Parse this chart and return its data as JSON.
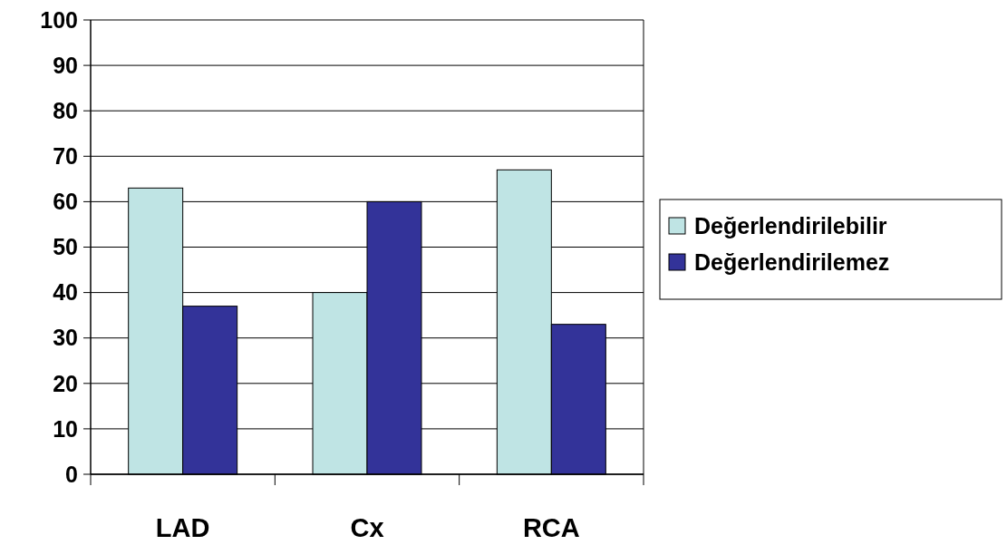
{
  "chart_data": {
    "type": "bar",
    "categories": [
      "LAD",
      "Cx",
      "RCA"
    ],
    "series": [
      {
        "name": "Değerlendirilebilir",
        "color": "#bfe4e4",
        "values": [
          63,
          40,
          67
        ]
      },
      {
        "name": "Değerlendirilemez",
        "color": "#333399",
        "values": [
          37,
          60,
          33
        ]
      }
    ],
    "ylim": [
      0,
      100
    ],
    "yticks": [
      0,
      10,
      20,
      30,
      40,
      50,
      60,
      70,
      80,
      90,
      100
    ],
    "grid": "y",
    "legend": "right"
  }
}
